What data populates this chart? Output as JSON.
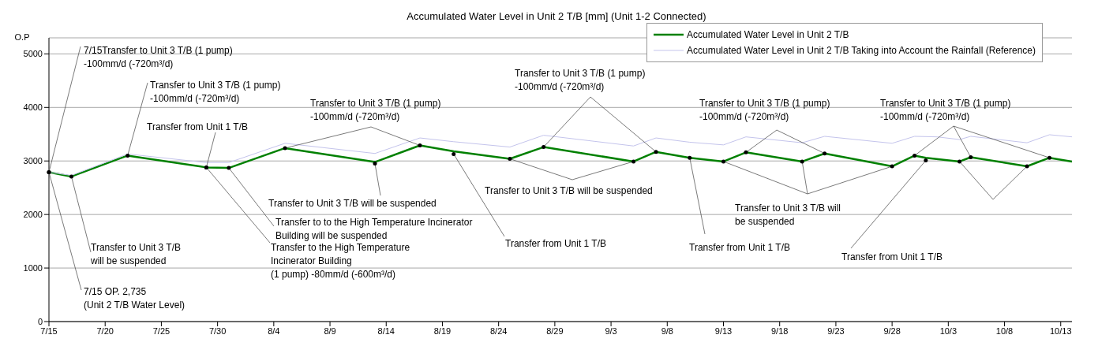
{
  "chart_data": {
    "type": "line",
    "title": "Accumulated Water Level in Unit 2 T/B [mm] (Unit 1-2 Connected)",
    "ylabel": "O.P",
    "xlim": [
      "--07-15",
      "--10-14"
    ],
    "xticks": [
      {
        "value": "--07-15",
        "label": "7/15"
      },
      {
        "value": "--07-20",
        "label": "7/20"
      },
      {
        "value": "--07-25",
        "label": "7/25"
      },
      {
        "value": "--07-30",
        "label": "7/30"
      },
      {
        "value": "--08-04",
        "label": "8/4"
      },
      {
        "value": "--08-09",
        "label": "8/9"
      },
      {
        "value": "--08-14",
        "label": "8/14"
      },
      {
        "value": "--08-19",
        "label": "8/19"
      },
      {
        "value": "--08-24",
        "label": "8/24"
      },
      {
        "value": "--08-29",
        "label": "8/29"
      },
      {
        "value": "--09-03",
        "label": "9/3"
      },
      {
        "value": "--09-08",
        "label": "9/8"
      },
      {
        "value": "--09-13",
        "label": "9/13"
      },
      {
        "value": "--09-18",
        "label": "9/18"
      },
      {
        "value": "--09-23",
        "label": "9/23"
      },
      {
        "value": "--09-28",
        "label": "9/28"
      },
      {
        "value": "--10-03",
        "label": "10/3"
      },
      {
        "value": "--10-08",
        "label": "10/8"
      },
      {
        "value": "--10-13",
        "label": "10/13"
      }
    ],
    "ylim": [
      0,
      5300
    ],
    "yticks": [
      0,
      1000,
      2000,
      3000,
      4000,
      5000
    ],
    "grid": "y",
    "legend": "top right",
    "series": [
      {
        "name": "Accumulated Water Level in Unit 2 T/B",
        "color": "#008000",
        "x": [
          "--07-15",
          "--07-17",
          "--07-22",
          "--07-29",
          "--07-31",
          "--08-05",
          "--08-13",
          "--08-17",
          "--08-20",
          "--08-25",
          "--08-28",
          "--09-05",
          "--09-07",
          "--09-10",
          "--09-13",
          "--09-15",
          "--09-20",
          "--09-22",
          "--09-28",
          "--09-30",
          "--10-01",
          "--10-04",
          "--10-05",
          "--10-10",
          "--10-12",
          "--10-14"
        ],
        "values": [
          2790,
          2710,
          3100,
          2880,
          2870,
          3240,
          2980,
          3290,
          3180,
          3040,
          3260,
          2990,
          3170,
          3060,
          2990,
          3160,
          2990,
          3140,
          2900,
          3100,
          3060,
          2990,
          3070,
          2900,
          3060,
          2990
        ]
      },
      {
        "name": "Accumulated Water Level in Unit 2 T/B Taking into Account the Rainfall (Reference)",
        "color": "#c4c4ec",
        "x": [
          "--07-15",
          "--07-17",
          "--07-22",
          "--07-29",
          "--07-31",
          "--08-05",
          "--08-13",
          "--08-17",
          "--08-20",
          "--08-25",
          "--08-28",
          "--09-05",
          "--09-07",
          "--09-10",
          "--09-13",
          "--09-15",
          "--09-20",
          "--09-22",
          "--09-28",
          "--09-30",
          "--10-02",
          "--10-04",
          "--10-05",
          "--10-10",
          "--10-12",
          "--10-14"
        ],
        "values": [
          2790,
          2730,
          3130,
          2970,
          2970,
          3330,
          3140,
          3430,
          3360,
          3260,
          3480,
          3280,
          3430,
          3350,
          3300,
          3450,
          3340,
          3460,
          3330,
          3460,
          3450,
          3400,
          3460,
          3340,
          3490,
          3450
        ]
      }
    ],
    "annotations": [
      {
        "text": "7/15Transfer to Unit 3 T/B (1 pump)\n-100mm/d (-720m³/d)",
        "x": "--07-15",
        "y": 2790
      },
      {
        "text": "7/15 OP. 2,735\n(Unit 2 T/B Water Level)",
        "x": "--07-15",
        "y": 2790
      },
      {
        "text": "Transfer to Unit 3 T/B\nwill be suspended",
        "x": "--07-17",
        "y": 2710
      },
      {
        "text": "Transfer to Unit 3 T/B (1 pump)\n-100mm/d (-720m³/d)",
        "x": "--07-22",
        "y": 3100
      },
      {
        "text": "Transfer from Unit 1 T/B",
        "x": "--07-29",
        "y": 2880
      },
      {
        "text": "Transfer to to the High Temperature Incinerator\nBuilding will be suspended",
        "x": "--07-31",
        "y": 2870
      },
      {
        "text": "Transfer to the High Temperature\nIncinerator Building\n(1 pump) -80mm/d (-600m³/d)",
        "x": "--07-29",
        "y": 2880
      },
      {
        "text": "Transfer to Unit 3 T/B (1 pump)\n-100mm/d (-720m³/d)",
        "x": "--08-05",
        "y": 3240
      },
      {
        "text": "Transfer to Unit 3 T/B will be suspended",
        "x": "--08-13",
        "y": 2950
      },
      {
        "text": "Transfer from Unit 1 T/B",
        "x": "--08-20",
        "y": 3130
      },
      {
        "text": "Transfer to Unit 3 T/B (1 pump)\n-100mm/d (-720m³/d)",
        "x": "--08-28",
        "y": 3260
      },
      {
        "text": "Transfer to Unit 3 T/B will be suspended",
        "x": "--08-25",
        "y": 3040
      },
      {
        "text": "Transfer from Unit 1 T/B",
        "x": "--09-10",
        "y": 3060
      },
      {
        "text": "Transfer to Unit 3 T/B (1 pump)\n-100mm/d (-720m³/d)",
        "x": "--09-15",
        "y": 3160
      },
      {
        "text": "Transfer to Unit 3 T/B will\nbe suspended",
        "x": "--09-13",
        "y": 2990
      },
      {
        "text": "Transfer from Unit 1 T/B",
        "x": "--10-01",
        "y": 3010
      },
      {
        "text": "Transfer to Unit 3 T/B (1 pump)\n-100mm/d (-720m³/d)",
        "x": "--09-30",
        "y": 3100
      }
    ]
  }
}
